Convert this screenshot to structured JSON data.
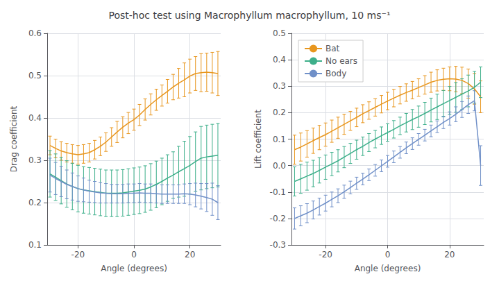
{
  "chart_data": [
    {
      "type": "line",
      "title": "Post-hoc test using Macrophyllum macrophyllum, 10 ms⁻¹",
      "x": [
        -30,
        -28,
        -26,
        -24,
        -22,
        -20,
        -18,
        -16,
        -14,
        -12,
        -10,
        -8,
        -6,
        -4,
        -2,
        0,
        2,
        4,
        6,
        8,
        10,
        12,
        14,
        16,
        18,
        20,
        22,
        24,
        26,
        28,
        30
      ],
      "xlabel": "Angle (degrees)",
      "ylabel": "Drag coefficient",
      "xlim": [
        -31,
        31
      ],
      "xticks": [
        -20,
        0,
        20
      ],
      "ylim": [
        0.1,
        0.6
      ],
      "yticks": [
        0.1,
        0.2,
        0.3,
        0.4,
        0.5,
        0.6
      ],
      "grid": true,
      "series": [
        {
          "name": "Bat",
          "color": "#E8961E",
          "values": [
            0.335,
            0.328,
            0.322,
            0.318,
            0.315,
            0.313,
            0.315,
            0.318,
            0.325,
            0.333,
            0.343,
            0.355,
            0.367,
            0.378,
            0.388,
            0.396,
            0.407,
            0.42,
            0.432,
            0.443,
            0.453,
            0.463,
            0.473,
            0.482,
            0.49,
            0.499,
            0.505,
            0.507,
            0.508,
            0.507,
            0.505
          ],
          "errors": [
            0.022,
            0.022,
            0.022,
            0.022,
            0.022,
            0.022,
            0.022,
            0.022,
            0.022,
            0.022,
            0.022,
            0.022,
            0.025,
            0.025,
            0.025,
            0.025,
            0.025,
            0.025,
            0.025,
            0.025,
            0.025,
            0.028,
            0.03,
            0.035,
            0.04,
            0.04,
            0.04,
            0.045,
            0.045,
            0.048,
            0.052
          ]
        },
        {
          "name": "No ears",
          "color": "#3DAF8A",
          "values": [
            0.268,
            0.26,
            0.252,
            0.244,
            0.238,
            0.233,
            0.23,
            0.228,
            0.226,
            0.224,
            0.222,
            0.222,
            0.222,
            0.223,
            0.225,
            0.227,
            0.229,
            0.232,
            0.237,
            0.243,
            0.25,
            0.258,
            0.265,
            0.273,
            0.28,
            0.288,
            0.297,
            0.305,
            0.308,
            0.31,
            0.312
          ],
          "errors": [
            0.055,
            0.055,
            0.055,
            0.055,
            0.055,
            0.055,
            0.055,
            0.055,
            0.055,
            0.055,
            0.055,
            0.055,
            0.055,
            0.055,
            0.055,
            0.055,
            0.055,
            0.055,
            0.055,
            0.055,
            0.055,
            0.055,
            0.055,
            0.06,
            0.065,
            0.068,
            0.07,
            0.075,
            0.075,
            0.075,
            0.075
          ]
        },
        {
          "name": "Body",
          "color": "#7090C8",
          "values": [
            0.265,
            0.257,
            0.25,
            0.243,
            0.238,
            0.233,
            0.23,
            0.227,
            0.225,
            0.223,
            0.222,
            0.221,
            0.221,
            0.221,
            0.222,
            0.222,
            0.223,
            0.222,
            0.222,
            0.221,
            0.22,
            0.22,
            0.22,
            0.22,
            0.221,
            0.22,
            0.218,
            0.215,
            0.212,
            0.208,
            0.2
          ],
          "errors": [
            0.04,
            0.038,
            0.036,
            0.034,
            0.032,
            0.03,
            0.028,
            0.026,
            0.025,
            0.024,
            0.023,
            0.022,
            0.022,
            0.022,
            0.022,
            0.022,
            0.022,
            0.022,
            0.022,
            0.022,
            0.022,
            0.022,
            0.022,
            0.022,
            0.023,
            0.025,
            0.028,
            0.03,
            0.033,
            0.038,
            0.04
          ]
        }
      ]
    },
    {
      "type": "line",
      "x": [
        -30,
        -28,
        -26,
        -24,
        -22,
        -20,
        -18,
        -16,
        -14,
        -12,
        -10,
        -8,
        -6,
        -4,
        -2,
        0,
        2,
        4,
        6,
        8,
        10,
        12,
        14,
        16,
        18,
        20,
        22,
        24,
        26,
        28,
        30
      ],
      "xlabel": "Angle (degrees)",
      "ylabel": "Lift coefficient",
      "xlim": [
        -31,
        31
      ],
      "xticks": [
        -20,
        0,
        20
      ],
      "ylim": [
        -0.3,
        0.5
      ],
      "yticks": [
        -0.3,
        -0.2,
        -0.1,
        {
          "value": 0,
          "label": "0.0"
        },
        0.1,
        0.2,
        0.3,
        0.4,
        0.5
      ],
      "grid": true,
      "legend": "upper left",
      "series": [
        {
          "name": "Bat",
          "color": "#E8961E",
          "values": [
            0.06,
            0.07,
            0.082,
            0.094,
            0.106,
            0.117,
            0.13,
            0.143,
            0.156,
            0.169,
            0.182,
            0.196,
            0.208,
            0.22,
            0.232,
            0.244,
            0.255,
            0.266,
            0.276,
            0.285,
            0.295,
            0.305,
            0.315,
            0.322,
            0.326,
            0.328,
            0.327,
            0.322,
            0.31,
            0.29,
            0.26
          ],
          "errors": [
            0.055,
            0.053,
            0.05,
            0.048,
            0.046,
            0.044,
            0.042,
            0.04,
            0.038,
            0.036,
            0.035,
            0.034,
            0.033,
            0.033,
            0.033,
            0.033,
            0.033,
            0.033,
            0.033,
            0.033,
            0.033,
            0.035,
            0.038,
            0.04,
            0.042,
            0.045,
            0.048,
            0.05,
            0.055,
            0.058,
            0.06
          ]
        },
        {
          "name": "No ears",
          "color": "#3DAF8A",
          "values": [
            -0.06,
            -0.05,
            -0.04,
            -0.03,
            -0.018,
            -0.006,
            0.006,
            0.018,
            0.032,
            0.046,
            0.06,
            0.073,
            0.087,
            0.1,
            0.113,
            0.125,
            0.137,
            0.15,
            0.162,
            0.174,
            0.185,
            0.197,
            0.21,
            0.222,
            0.234,
            0.246,
            0.258,
            0.27,
            0.282,
            0.296,
            0.315
          ],
          "errors": [
            0.055,
            0.055,
            0.053,
            0.05,
            0.048,
            0.046,
            0.044,
            0.042,
            0.04,
            0.038,
            0.036,
            0.035,
            0.034,
            0.033,
            0.033,
            0.033,
            0.033,
            0.033,
            0.035,
            0.038,
            0.04,
            0.042,
            0.045,
            0.048,
            0.05,
            0.053,
            0.056,
            0.058,
            0.06,
            0.06,
            0.058
          ]
        },
        {
          "name": "Body",
          "color": "#7090C8",
          "values": [
            -0.2,
            -0.19,
            -0.18,
            -0.168,
            -0.155,
            -0.142,
            -0.128,
            -0.114,
            -0.099,
            -0.083,
            -0.067,
            -0.051,
            -0.035,
            -0.018,
            -0.001,
            0.016,
            0.033,
            0.05,
            0.067,
            0.083,
            0.099,
            0.115,
            0.131,
            0.147,
            0.163,
            0.178,
            0.194,
            0.212,
            0.23,
            0.245,
            0.0
          ],
          "errors": [
            0.04,
            0.038,
            0.036,
            0.034,
            0.032,
            0.03,
            0.028,
            0.026,
            0.025,
            0.024,
            0.023,
            0.022,
            0.022,
            0.022,
            0.022,
            0.022,
            0.022,
            0.022,
            0.022,
            0.022,
            0.022,
            0.022,
            0.022,
            0.022,
            0.023,
            0.025,
            0.028,
            0.03,
            0.033,
            0.038,
            0.075
          ]
        }
      ]
    }
  ]
}
